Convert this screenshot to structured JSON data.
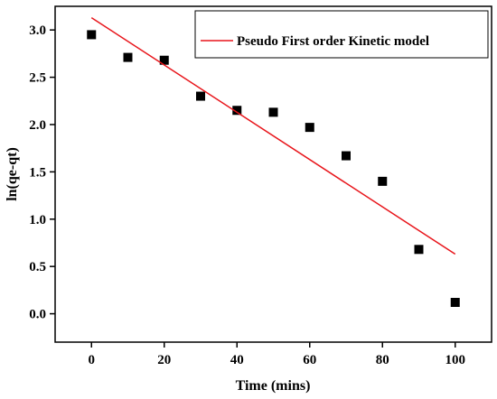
{
  "chart_data": {
    "type": "scatter",
    "xlabel": "Time (mins)",
    "ylabel": "ln(qe-qt)",
    "xlim": [
      -10,
      110
    ],
    "ylim": [
      -0.3,
      3.25
    ],
    "xticks": [
      0,
      20,
      40,
      60,
      80,
      100
    ],
    "xtick_labels": [
      "0",
      "20",
      "40",
      "60",
      "80",
      "100"
    ],
    "yticks": [
      0.0,
      0.5,
      1.0,
      1.5,
      2.0,
      2.5,
      3.0
    ],
    "ytick_labels": [
      "0.0",
      "0.5",
      "1.0",
      "1.5",
      "2.0",
      "2.5",
      "3.0"
    ],
    "grid": false,
    "legend_position": "top-right",
    "series": [
      {
        "kind": "points",
        "marker": "square",
        "color": "#000000",
        "x": [
          0,
          10,
          20,
          30,
          40,
          50,
          60,
          70,
          80,
          90,
          100
        ],
        "y": [
          2.95,
          2.71,
          2.68,
          2.3,
          2.15,
          2.13,
          1.97,
          1.67,
          1.4,
          0.68,
          0.12
        ]
      },
      {
        "kind": "line",
        "name": "Pseudo First order Kinetic model",
        "color": "#e8151b",
        "x": [
          0,
          100
        ],
        "y": [
          3.13,
          0.63
        ]
      }
    ]
  }
}
